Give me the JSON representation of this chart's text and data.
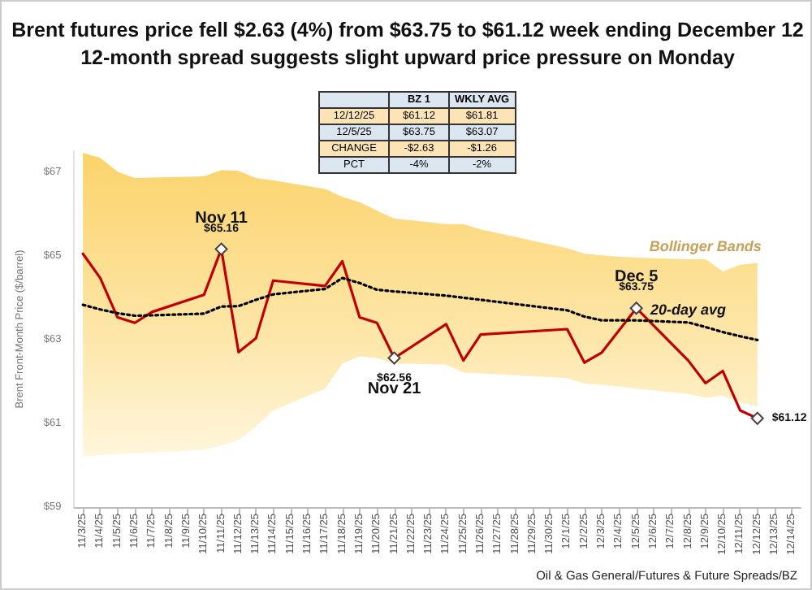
{
  "chart_data": [
    {
      "type": "line",
      "title": "Brent futures price fell $2.63 (4%) from $63.75 to $61.12 week ending December 12",
      "subtitle": "12-month spread suggests slight upward price pressure on Monday",
      "ylabel": "Brent Front-Month Price ($/barrel)",
      "categories": [
        "11/3/25",
        "11/4/25",
        "11/5/25",
        "11/6/25",
        "11/7/25",
        "11/8/25",
        "11/9/25",
        "11/10/25",
        "11/11/25",
        "11/12/25",
        "11/13/25",
        "11/14/25",
        "11/15/25",
        "11/16/25",
        "11/17/25",
        "11/18/25",
        "11/19/25",
        "11/20/25",
        "11/21/25",
        "11/22/25",
        "11/23/25",
        "11/24/25",
        "11/25/25",
        "11/26/25",
        "11/27/25",
        "11/28/25",
        "11/29/25",
        "11/30/25",
        "12/1/25",
        "12/2/25",
        "12/3/25",
        "12/4/25",
        "12/5/25",
        "12/6/25",
        "12/7/25",
        "12/8/25",
        "12/9/25",
        "12/10/25",
        "12/11/25",
        "12/12/25",
        "12/13/25",
        "12/14/25"
      ],
      "series": [
        {
          "color": "#c00000",
          "value_labels": [
            null,
            null,
            null,
            null,
            null,
            null,
            null,
            null,
            "$65.16",
            null,
            null,
            null,
            null,
            null,
            null,
            null,
            null,
            null,
            "$62.56",
            null,
            null,
            null,
            null,
            null,
            null,
            null,
            null,
            null,
            null,
            null,
            null,
            null,
            "$63.75",
            null,
            null,
            null,
            null,
            null,
            null,
            "$61.12",
            null,
            null
          ],
          "values": [
            65.05,
            64.47,
            63.53,
            63.4,
            63.66,
            null,
            null,
            64.07,
            65.16,
            62.7,
            63.03,
            64.41,
            null,
            null,
            64.28,
            64.87,
            63.53,
            63.4,
            62.56,
            null,
            null,
            63.37,
            62.5,
            63.12,
            null,
            null,
            null,
            null,
            63.25,
            62.45,
            62.69,
            63.22,
            63.75,
            null,
            null,
            62.5,
            61.96,
            62.25,
            61.31,
            61.12,
            null,
            null
          ]
        },
        {
          "color": "#000000",
          "line_style": "dotted",
          "values": [
            63.83,
            63.72,
            63.63,
            63.57,
            63.58,
            null,
            null,
            63.62,
            63.79,
            63.8,
            63.95,
            64.08,
            null,
            null,
            64.21,
            64.47,
            64.35,
            64.19,
            64.15,
            null,
            null,
            64.05,
            64.0,
            63.95,
            null,
            null,
            null,
            null,
            63.7,
            63.55,
            63.46,
            63.46,
            63.46,
            null,
            null,
            63.41,
            63.3,
            63.18,
            63.08,
            62.99,
            null,
            null
          ],
          "upper": [
            67.46,
            67.34,
            67.01,
            66.86,
            66.87,
            null,
            null,
            66.9,
            67.05,
            67.03,
            66.86,
            66.8,
            null,
            null,
            66.6,
            66.41,
            66.28,
            66.08,
            65.89,
            null,
            null,
            65.76,
            65.76,
            65.63,
            null,
            null,
            null,
            null,
            65.18,
            65.05,
            65.01,
            64.98,
            64.96,
            null,
            null,
            64.92,
            64.92,
            64.63,
            64.79,
            64.83,
            null,
            null
          ],
          "lower": [
            60.21,
            60.24,
            60.26,
            60.28,
            60.3,
            null,
            null,
            60.37,
            60.47,
            60.6,
            60.92,
            61.31,
            null,
            null,
            61.83,
            62.43,
            62.6,
            62.56,
            62.43,
            null,
            null,
            62.4,
            62.21,
            62.19,
            null,
            null,
            null,
            null,
            62.08,
            61.95,
            61.92,
            61.88,
            61.83,
            null,
            null,
            61.7,
            61.61,
            61.66,
            61.5,
            61.4,
            null,
            null
          ]
        }
      ],
      "ylim": [
        59,
        67.5
      ],
      "yticks": [
        {
          "value": 59,
          "label": "$59"
        },
        {
          "value": 61,
          "label": "$61"
        },
        {
          "value": 63,
          "label": "$63"
        },
        {
          "value": 65,
          "label": "$65"
        },
        {
          "value": 67,
          "label": "$67"
        }
      ],
      "annotations": [
        {
          "text": "Nov 11",
          "x": "11/11/25",
          "y": 65.16
        },
        {
          "text": "Nov 21",
          "x": "11/21/25",
          "y": 62.56
        },
        {
          "text": "Dec 5",
          "x": "12/5/25",
          "y": 63.75
        },
        {
          "text": "20-day avg",
          "x": "12/8/25",
          "y": 63.41
        },
        {
          "text": "Bollinger Bands",
          "x": "12/9/25",
          "y": 64.92
        },
        "Oil & Gas General/Futures & Future Spreads/BZ"
      ]
    },
    {
      "type": "other",
      "categories": [
        null,
        "BZ 1",
        "WKLY AVG"
      ],
      "y_categories": [
        "12/12/25",
        "12/5/25",
        "CHANGE",
        "PCT"
      ],
      "cell_labels": [
        [
          "$61.12",
          "$61.81"
        ],
        [
          "$63.75",
          "$63.07"
        ],
        [
          "-$2.63",
          "-$1.26"
        ],
        [
          "-4%",
          "-2%"
        ]
      ]
    }
  ]
}
